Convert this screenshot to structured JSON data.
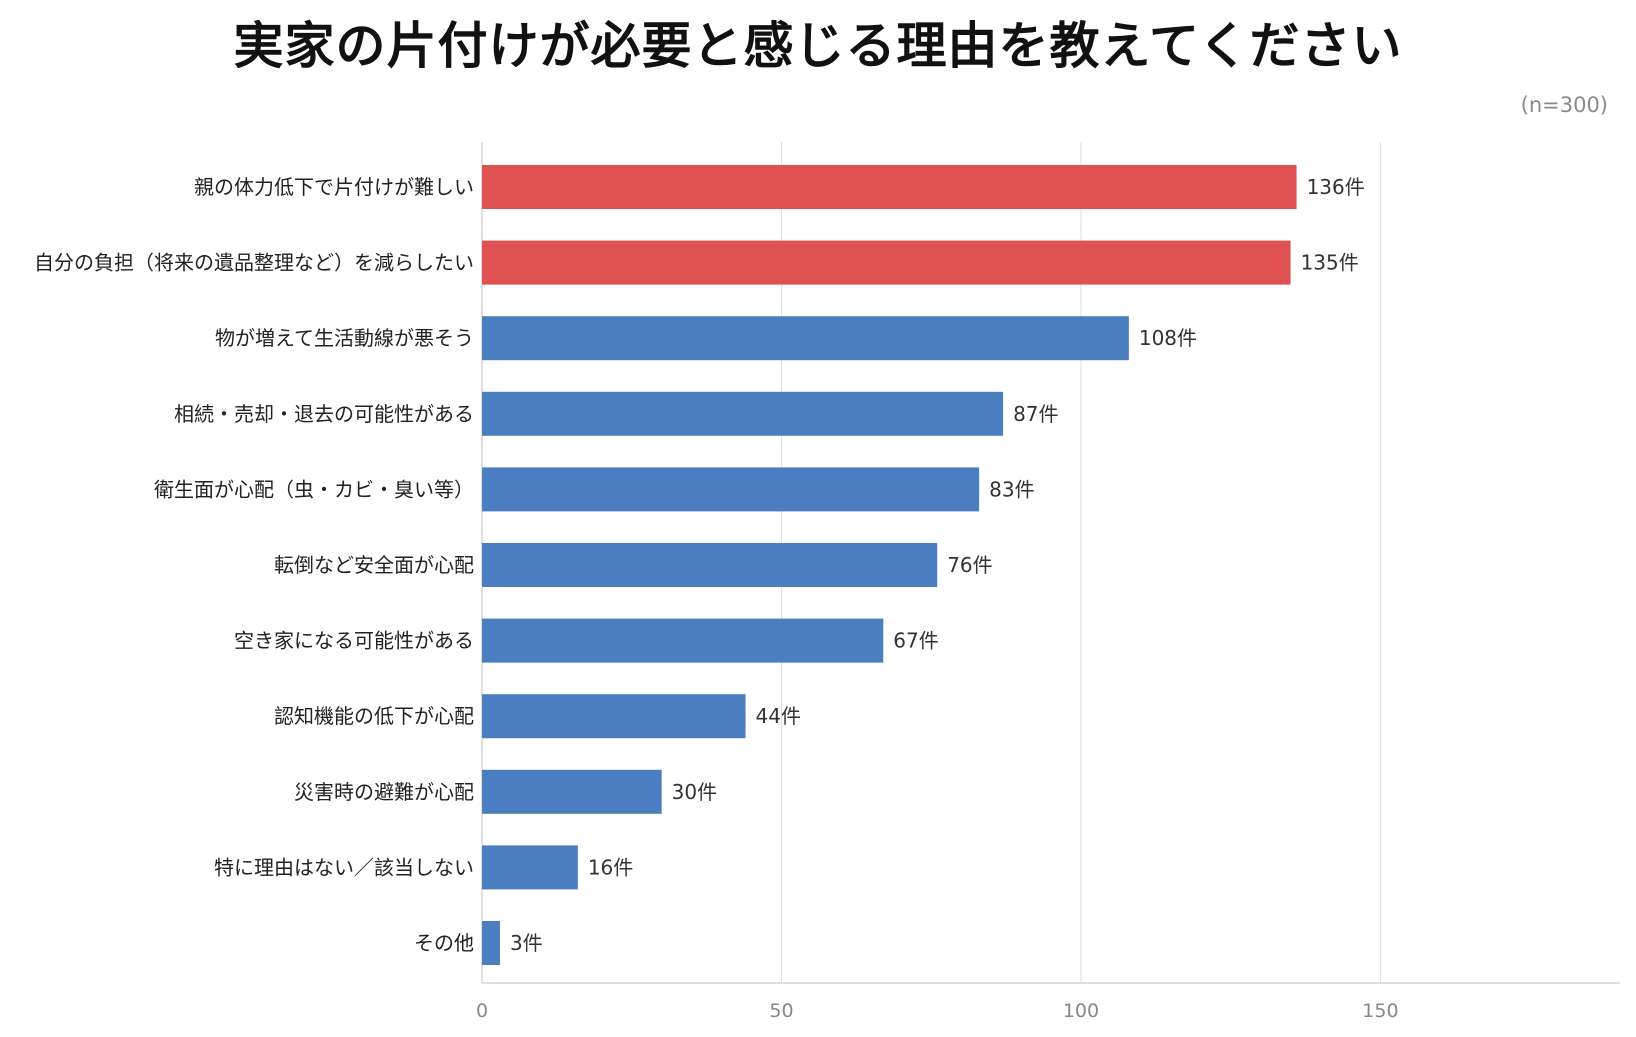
{
  "chart_data": {
    "type": "bar",
    "orientation": "horizontal",
    "title": "実家の片付けが必要と感じる理由を教えてください",
    "sample_note": "(n=300)",
    "value_suffix": "件",
    "categories": [
      "親の体力低下で片付けが難しい",
      "自分の負担（将来の遺品整理など）を減らしたい",
      "物が増えて生活動線が悪そう",
      "相続・売却・退去の可能性がある",
      "衛生面が心配（虫・カビ・臭い等）",
      "転倒など安全面が心配",
      "空き家になる可能性がある",
      "認知機能の低下が心配",
      "災害時の避難が心配",
      "特に理由はない／該当しない",
      "その他"
    ],
    "values": [
      136,
      135,
      108,
      87,
      83,
      76,
      67,
      44,
      30,
      16,
      3
    ],
    "value_labels": [
      "136件",
      "135件",
      "108件",
      "87件",
      "83件",
      "76件",
      "67件",
      "44件",
      "30件",
      "16件",
      "3件"
    ],
    "highlight_count": 2,
    "xlim": [
      0,
      190
    ],
    "xticks": [
      0,
      50,
      100,
      150
    ],
    "xtick_labels": [
      "0",
      "50",
      "100",
      "150"
    ],
    "grid": true,
    "xlabel": "",
    "ylabel": "",
    "colors": {
      "highlight": "#e05252",
      "normal": "#4b7ec1",
      "grid": "#dddddd",
      "axis": "#cccccc"
    }
  }
}
